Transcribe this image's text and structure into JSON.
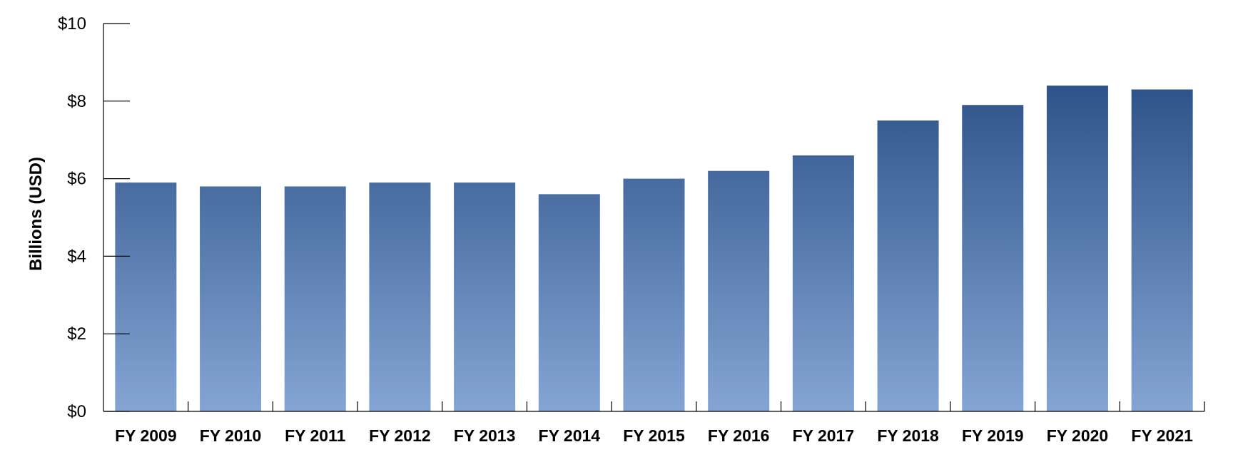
{
  "chart_data": {
    "type": "bar",
    "title": "",
    "xlabel": "",
    "ylabel": "Billions (USD)",
    "ylim": [
      0,
      10
    ],
    "y_ticks": [
      0,
      2,
      4,
      6,
      8,
      10
    ],
    "y_tick_labels": [
      "$0",
      "$2",
      "$4",
      "$6",
      "$8",
      "$10"
    ],
    "categories": [
      "FY 2009",
      "FY 2010",
      "FY 2011",
      "FY 2012",
      "FY 2013",
      "FY 2014",
      "FY 2015",
      "FY 2016",
      "FY 2017",
      "FY 2018",
      "FY 2019",
      "FY 2020",
      "FY 2021"
    ],
    "values": [
      5.9,
      5.8,
      5.8,
      5.9,
      5.9,
      5.6,
      6.0,
      6.2,
      6.6,
      7.5,
      7.9,
      8.4,
      8.3
    ],
    "grid": false,
    "legend": "none",
    "colors": {
      "bar_top": "#2d5289",
      "bar_bottom": "#84a5d4",
      "axis": "#000000"
    }
  }
}
